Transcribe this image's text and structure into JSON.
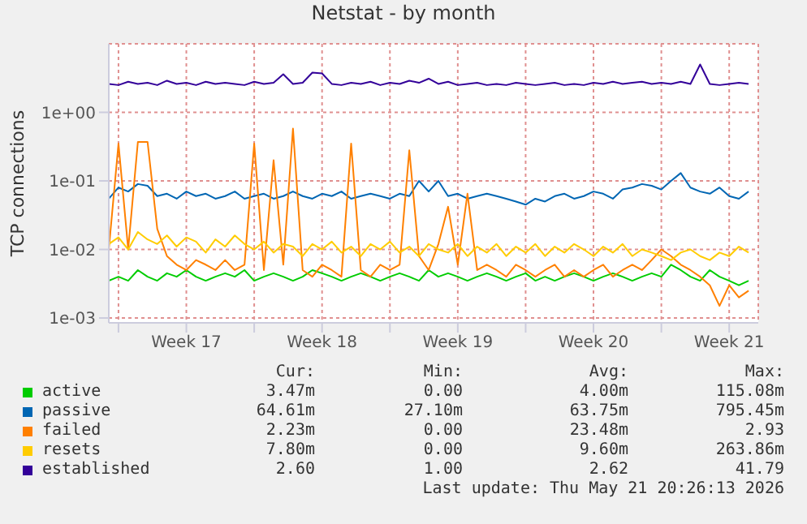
{
  "chart_data": {
    "type": "line",
    "title": "Netstat - by month",
    "ylabel": "TCP connections",
    "log": true,
    "grid": true,
    "legend": "bottom",
    "x": [
      "2026-04-19T12:00",
      "2026-04-20T00:00",
      "2026-04-20T12:00",
      "2026-04-21T00:00",
      "2026-04-21T12:00",
      "2026-04-22T00:00",
      "2026-04-22T12:00",
      "2026-04-23T00:00",
      "2026-04-23T12:00",
      "2026-04-24T00:00",
      "2026-04-24T12:00",
      "2026-04-25T00:00",
      "2026-04-25T12:00",
      "2026-04-26T00:00",
      "2026-04-26T12:00",
      "2026-04-27T00:00",
      "2026-04-27T12:00",
      "2026-04-28T00:00",
      "2026-04-28T12:00",
      "2026-04-29T00:00",
      "2026-04-29T12:00",
      "2026-04-30T00:00",
      "2026-04-30T12:00",
      "2026-05-01T00:00",
      "2026-05-01T12:00",
      "2026-05-02T00:00",
      "2026-05-02T12:00",
      "2026-05-03T00:00",
      "2026-05-03T12:00",
      "2026-05-04T00:00",
      "2026-05-04T12:00",
      "2026-05-05T00:00",
      "2026-05-05T12:00",
      "2026-05-06T00:00",
      "2026-05-06T12:00",
      "2026-05-07T00:00",
      "2026-05-07T12:00",
      "2026-05-08T00:00",
      "2026-05-08T12:00",
      "2026-05-09T00:00",
      "2026-05-09T12:00",
      "2026-05-10T00:00",
      "2026-05-10T12:00",
      "2026-05-11T00:00",
      "2026-05-11T12:00",
      "2026-05-12T00:00",
      "2026-05-12T12:00",
      "2026-05-13T00:00",
      "2026-05-13T12:00",
      "2026-05-14T00:00",
      "2026-05-14T12:00",
      "2026-05-15T00:00",
      "2026-05-15T12:00",
      "2026-05-16T00:00",
      "2026-05-16T12:00",
      "2026-05-17T00:00",
      "2026-05-17T12:00",
      "2026-05-18T00:00",
      "2026-05-18T12:00",
      "2026-05-19T00:00",
      "2026-05-19T12:00",
      "2026-05-20T00:00",
      "2026-05-20T12:00",
      "2026-05-21T00:00",
      "2026-05-21T12:00",
      "2026-05-22T00:00",
      "2026-05-22T12:00"
    ],
    "xlim": [
      "2026-04-19T12:00",
      "2026-05-23T00:00"
    ],
    "xticks": [
      {
        "value": "2026-04-20T00:00",
        "label": null
      },
      {
        "value": "2026-04-23T12:00",
        "label": "Week 17"
      },
      {
        "value": "2026-04-27T00:00",
        "label": null
      },
      {
        "value": "2026-04-30T12:00",
        "label": "Week 18"
      },
      {
        "value": "2026-05-04T00:00",
        "label": null
      },
      {
        "value": "2026-05-07T12:00",
        "label": "Week 19"
      },
      {
        "value": "2026-05-11T00:00",
        "label": null
      },
      {
        "value": "2026-05-14T12:00",
        "label": "Week 20"
      },
      {
        "value": "2026-05-18T00:00",
        "label": null
      },
      {
        "value": "2026-05-21T12:00",
        "label": "Week 21"
      }
    ],
    "ylim": [
      0.00085,
      10
    ],
    "yticks": [
      {
        "value": 0.001,
        "label": "1e-03"
      },
      {
        "value": 0.01,
        "label": "1e-02"
      },
      {
        "value": 0.1,
        "label": "1e-01"
      },
      {
        "value": 1,
        "label": "1e+00"
      }
    ],
    "series": [
      {
        "name": "active",
        "color": "#00cc00",
        "values": [
          0.0035,
          0.004,
          0.0035,
          0.005,
          0.004,
          0.0035,
          0.0045,
          0.004,
          0.005,
          0.004,
          0.0035,
          0.004,
          0.0045,
          0.004,
          0.005,
          0.0035,
          0.004,
          0.0045,
          0.004,
          0.0035,
          0.004,
          0.005,
          0.0045,
          0.004,
          0.0035,
          0.004,
          0.0045,
          0.004,
          0.0035,
          0.004,
          0.0045,
          0.004,
          0.0035,
          0.005,
          0.004,
          0.0045,
          0.004,
          0.0035,
          0.004,
          0.0045,
          0.004,
          0.0035,
          0.004,
          0.0045,
          0.0035,
          0.004,
          0.0035,
          0.004,
          0.0045,
          0.004,
          0.0035,
          0.004,
          0.0045,
          0.004,
          0.0035,
          0.004,
          0.0045,
          0.004,
          0.006,
          0.005,
          0.004,
          0.0035,
          0.005,
          0.004,
          0.0035,
          0.003,
          0.0035
        ]
      },
      {
        "name": "passive",
        "color": "#0066b3",
        "values": [
          0.055,
          0.08,
          0.07,
          0.09,
          0.085,
          0.06,
          0.065,
          0.055,
          0.07,
          0.06,
          0.065,
          0.055,
          0.06,
          0.07,
          0.055,
          0.06,
          0.065,
          0.055,
          0.06,
          0.07,
          0.06,
          0.055,
          0.065,
          0.06,
          0.07,
          0.055,
          0.06,
          0.065,
          0.06,
          0.055,
          0.065,
          0.06,
          0.1,
          0.07,
          0.1,
          0.06,
          0.065,
          0.055,
          0.06,
          0.065,
          0.06,
          0.055,
          0.05,
          0.045,
          0.055,
          0.05,
          0.06,
          0.065,
          0.055,
          0.06,
          0.07,
          0.065,
          0.055,
          0.075,
          0.08,
          0.09,
          0.085,
          0.075,
          0.1,
          0.13,
          0.08,
          0.07,
          0.065,
          0.08,
          0.06,
          0.055,
          0.07
        ]
      },
      {
        "name": "failed",
        "color": "#ff8000",
        "values": [
          0.01,
          0.35,
          0.01,
          0.37,
          0.37,
          0.02,
          0.008,
          0.006,
          0.005,
          0.007,
          0.006,
          0.005,
          0.007,
          0.005,
          0.006,
          0.35,
          0.005,
          0.2,
          0.006,
          0.58,
          0.005,
          0.004,
          0.006,
          0.005,
          0.004,
          0.35,
          0.005,
          0.004,
          0.006,
          0.005,
          0.006,
          0.28,
          0.008,
          0.005,
          0.012,
          0.042,
          0.006,
          0.065,
          0.005,
          0.006,
          0.005,
          0.004,
          0.006,
          0.005,
          0.004,
          0.005,
          0.006,
          0.004,
          0.005,
          0.004,
          0.005,
          0.006,
          0.004,
          0.005,
          0.006,
          0.005,
          0.007,
          0.01,
          0.008,
          0.006,
          0.005,
          0.004,
          0.003,
          0.0015,
          0.003,
          0.002,
          0.0025
        ]
      },
      {
        "name": "resets",
        "color": "#ffcc00",
        "values": [
          0.012,
          0.015,
          0.01,
          0.018,
          0.014,
          0.012,
          0.016,
          0.011,
          0.015,
          0.013,
          0.009,
          0.014,
          0.011,
          0.016,
          0.012,
          0.01,
          0.013,
          0.009,
          0.012,
          0.011,
          0.008,
          0.012,
          0.01,
          0.013,
          0.009,
          0.011,
          0.008,
          0.012,
          0.01,
          0.013,
          0.009,
          0.011,
          0.008,
          0.012,
          0.01,
          0.009,
          0.012,
          0.008,
          0.011,
          0.009,
          0.012,
          0.008,
          0.011,
          0.009,
          0.012,
          0.008,
          0.011,
          0.009,
          0.012,
          0.01,
          0.008,
          0.011,
          0.009,
          0.012,
          0.008,
          0.01,
          0.009,
          0.008,
          0.007,
          0.009,
          0.01,
          0.008,
          0.007,
          0.009,
          0.008,
          0.011,
          0.009
        ]
      },
      {
        "name": "established",
        "color": "#330099",
        "values": [
          2.6,
          2.5,
          2.8,
          2.6,
          2.7,
          2.5,
          2.9,
          2.6,
          2.7,
          2.5,
          2.8,
          2.6,
          2.7,
          2.6,
          2.5,
          2.8,
          2.6,
          2.7,
          3.6,
          2.6,
          2.7,
          3.8,
          3.7,
          2.6,
          2.5,
          2.7,
          2.6,
          2.8,
          2.5,
          2.7,
          2.6,
          2.9,
          2.7,
          3.1,
          2.6,
          2.8,
          2.5,
          2.6,
          2.7,
          2.5,
          2.6,
          2.5,
          2.7,
          2.6,
          2.5,
          2.6,
          2.7,
          2.5,
          2.6,
          2.5,
          2.7,
          2.6,
          2.8,
          2.6,
          2.7,
          2.8,
          2.6,
          2.7,
          2.6,
          2.8,
          2.6,
          5.0,
          2.6,
          2.5,
          2.6,
          2.7,
          2.6
        ]
      }
    ],
    "annotations": [
      "Cur:",
      "Min:",
      "Avg:",
      "Max:",
      "3.47m",
      "0.00",
      "4.00m",
      "115.08m",
      "64.61m",
      "27.10m",
      "63.75m",
      "795.45m",
      "2.23m",
      "0.00",
      "23.48m",
      "2.93",
      "7.80m",
      "0.00",
      "9.60m",
      "263.86m",
      "2.60",
      "1.00",
      "2.62",
      "41.79",
      "Last update: Thu May 21 20:26:13 2026"
    ]
  }
}
